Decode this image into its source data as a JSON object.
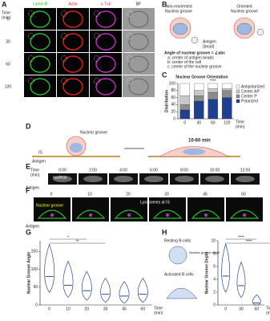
{
  "panel_labels": [
    "A",
    "B",
    "C",
    "D",
    "E",
    "F",
    "G",
    "H"
  ],
  "panel_a": {
    "time_label": "Time",
    "time_unit": "(min)",
    "columns": [
      {
        "name": "Lamin B",
        "color": "#2bb62b"
      },
      {
        "name": "Actin",
        "color": "#e32020"
      },
      {
        "name": "α-Tub",
        "color": "#c030c0"
      },
      {
        "name": "BF",
        "color": "#222222"
      }
    ],
    "rows": [
      "0",
      "30",
      "60",
      "120"
    ]
  },
  "panel_b": {
    "left_title": "Non-reoriented",
    "left_sub": "Nuclear groove",
    "right_title": "Oriented",
    "right_sub": "Nuclear groove",
    "antigen": "Antigen",
    "bead": "(bead)",
    "angle_title": "Angle of nuclear groove = ∠abc",
    "notes": [
      "a: center of antigen beads",
      "b: center of the cell",
      "c: center of the nuclear groove"
    ]
  },
  "panel_d": {
    "groove": "Nuclear groove",
    "is": "IS",
    "antigen": "Antigen",
    "time": "10-60 min"
  },
  "panel_e": {
    "time_label": "Time",
    "time_unit": "(min)",
    "times": [
      "0:00",
      "2:00",
      "4:00",
      "6:00",
      "8:00",
      "10:00",
      "12:00"
    ],
    "antigen": "Antigen",
    "nucleus": "nucleus"
  },
  "panel_f": {
    "times": [
      "0",
      "10",
      "20",
      "30",
      "45",
      "60"
    ],
    "groove": "Nuclear groove",
    "lysosomes": "Lysosomes at IS",
    "antigen": "Antigen"
  },
  "panel_h": {
    "resting": "Resting B cells",
    "activated": "Activated B cells",
    "depth": "Nuclear groove depth"
  },
  "chart_data": [
    {
      "type": "stacked_bar",
      "title": "Nuclear Groove Orientation",
      "y_label": "Distribution",
      "x_label": "Time",
      "x_unit": "(min)",
      "categories": [
        "0",
        "30",
        "60",
        "120"
      ],
      "series": [
        {
          "name": "Polarized",
          "color": "#1f3f8f",
          "values": [
            25,
            50,
            55,
            60
          ]
        },
        {
          "name": "Center P",
          "color": "#8c8c8c",
          "values": [
            15,
            15,
            20,
            20
          ]
        },
        {
          "name": "Center AP",
          "color": "#c8c8c8",
          "values": [
            25,
            15,
            10,
            5
          ]
        },
        {
          "name": "Antipolarized",
          "color": "#ffffff",
          "values": [
            35,
            20,
            15,
            15
          ]
        }
      ],
      "ylim": [
        0,
        100
      ],
      "yticks": [
        0,
        20,
        40,
        60,
        80,
        100
      ],
      "annotation": "****"
    },
    {
      "type": "violin",
      "y_label": "Nuclear Groove Angle",
      "x_label": "Time",
      "x_unit": "(min)",
      "categories": [
        "0",
        "10",
        "20",
        "30",
        "45",
        "60"
      ],
      "values": [
        80,
        55,
        40,
        30,
        25,
        30
      ],
      "ylim": [
        0,
        180
      ],
      "yticks": [
        0,
        50,
        100,
        150
      ],
      "color": "#2a4a9a",
      "annotations": [
        "*",
        "**"
      ]
    },
    {
      "type": "violin",
      "y_label": "Nuclear Groove Depth",
      "x_label": "Time",
      "x_unit": "(min)",
      "categories": [
        "0",
        "30",
        "60"
      ],
      "values": [
        4.5,
        3,
        0.3
      ],
      "ylim": [
        0,
        10
      ],
      "yticks": [
        0,
        2,
        4,
        6,
        8,
        10
      ],
      "color": "#2a4a9a",
      "annotations": [
        "****",
        "****"
      ]
    }
  ]
}
